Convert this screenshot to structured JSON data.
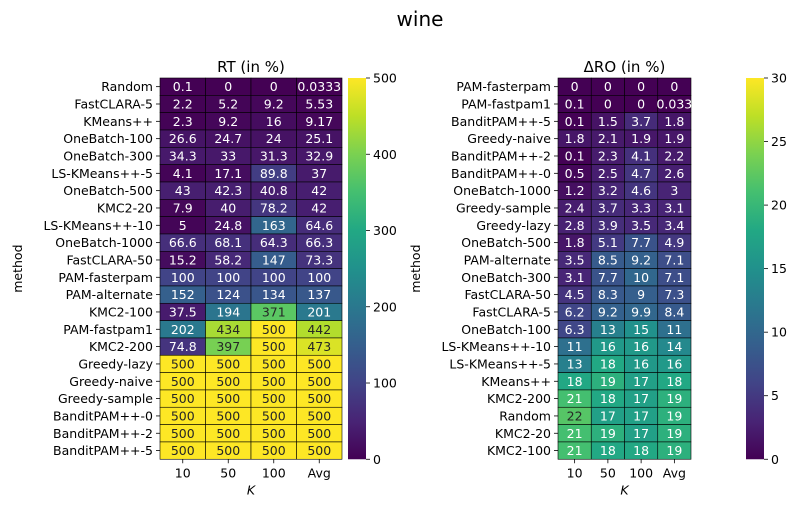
{
  "suptitle": "wine",
  "chart_data": [
    {
      "type": "heatmap",
      "title": "RT (in %)",
      "xlabel": "K",
      "ylabel": "method",
      "columns": [
        "10",
        "50",
        "100",
        "Avg"
      ],
      "colormap": "viridis",
      "vmin": 0,
      "vmax": 500,
      "colorbar_ticks": [
        0,
        100,
        200,
        300,
        400,
        500
      ],
      "rows": [
        {
          "label": "Random",
          "values": [
            0.1,
            0,
            0,
            0.0333
          ],
          "text": [
            "0.1",
            "0",
            "0",
            "0.0333"
          ]
        },
        {
          "label": "FastCLARA-5",
          "values": [
            2.2,
            5.2,
            9.2,
            5.53
          ],
          "text": [
            "2.2",
            "5.2",
            "9.2",
            "5.53"
          ]
        },
        {
          "label": "KMeans++",
          "values": [
            2.3,
            9.2,
            16,
            9.17
          ],
          "text": [
            "2.3",
            "9.2",
            "16",
            "9.17"
          ]
        },
        {
          "label": "OneBatch-100",
          "values": [
            26.6,
            24.7,
            24,
            25.1
          ],
          "text": [
            "26.6",
            "24.7",
            "24",
            "25.1"
          ]
        },
        {
          "label": "OneBatch-300",
          "values": [
            34.3,
            33,
            31.3,
            32.9
          ],
          "text": [
            "34.3",
            "33",
            "31.3",
            "32.9"
          ]
        },
        {
          "label": "LS-KMeans++-5",
          "values": [
            4.1,
            17.1,
            89.8,
            37
          ],
          "text": [
            "4.1",
            "17.1",
            "89.8",
            "37"
          ]
        },
        {
          "label": "OneBatch-500",
          "values": [
            43,
            42.3,
            40.8,
            42
          ],
          "text": [
            "43",
            "42.3",
            "40.8",
            "42"
          ]
        },
        {
          "label": "KMC2-20",
          "values": [
            7.9,
            40,
            78.2,
            42
          ],
          "text": [
            "7.9",
            "40",
            "78.2",
            "42"
          ]
        },
        {
          "label": "LS-KMeans++-10",
          "values": [
            5,
            24.8,
            163,
            64.6
          ],
          "text": [
            "5",
            "24.8",
            "163",
            "64.6"
          ]
        },
        {
          "label": "OneBatch-1000",
          "values": [
            66.6,
            68.1,
            64.3,
            66.3
          ],
          "text": [
            "66.6",
            "68.1",
            "64.3",
            "66.3"
          ]
        },
        {
          "label": "FastCLARA-50",
          "values": [
            15.2,
            58.2,
            147,
            73.3
          ],
          "text": [
            "15.2",
            "58.2",
            "147",
            "73.3"
          ]
        },
        {
          "label": "PAM-fasterpam",
          "values": [
            100,
            100,
            100,
            100
          ],
          "text": [
            "100",
            "100",
            "100",
            "100"
          ]
        },
        {
          "label": "PAM-alternate",
          "values": [
            152,
            124,
            134,
            137
          ],
          "text": [
            "152",
            "124",
            "134",
            "137"
          ]
        },
        {
          "label": "KMC2-100",
          "values": [
            37.5,
            194,
            371,
            201
          ],
          "text": [
            "37.5",
            "194",
            "371",
            "201"
          ]
        },
        {
          "label": "PAM-fastpam1",
          "values": [
            202,
            434,
            500,
            442
          ],
          "text": [
            "202",
            "434",
            "500",
            "442"
          ]
        },
        {
          "label": "KMC2-200",
          "values": [
            74.8,
            397,
            500,
            473
          ],
          "text": [
            "74.8",
            "397",
            "500",
            "473"
          ]
        },
        {
          "label": "Greedy-lazy",
          "values": [
            500,
            500,
            500,
            500
          ],
          "text": [
            "500",
            "500",
            "500",
            "500"
          ]
        },
        {
          "label": "Greedy-naive",
          "values": [
            500,
            500,
            500,
            500
          ],
          "text": [
            "500",
            "500",
            "500",
            "500"
          ]
        },
        {
          "label": "Greedy-sample",
          "values": [
            500,
            500,
            500,
            500
          ],
          "text": [
            "500",
            "500",
            "500",
            "500"
          ]
        },
        {
          "label": "BanditPAM++-0",
          "values": [
            500,
            500,
            500,
            500
          ],
          "text": [
            "500",
            "500",
            "500",
            "500"
          ]
        },
        {
          "label": "BanditPAM++-2",
          "values": [
            500,
            500,
            500,
            500
          ],
          "text": [
            "500",
            "500",
            "500",
            "500"
          ]
        },
        {
          "label": "BanditPAM++-5",
          "values": [
            500,
            500,
            500,
            500
          ],
          "text": [
            "500",
            "500",
            "500",
            "500"
          ]
        }
      ]
    },
    {
      "type": "heatmap",
      "title": "ΔRO (in %)",
      "xlabel": "K",
      "ylabel": "method",
      "columns": [
        "10",
        "50",
        "100",
        "Avg"
      ],
      "colormap": "viridis",
      "vmin": 0,
      "vmax": 30,
      "colorbar_ticks": [
        0,
        5,
        10,
        15,
        20,
        25,
        30
      ],
      "rows": [
        {
          "label": "PAM-fasterpam",
          "values": [
            0,
            0,
            0,
            0
          ],
          "text": [
            "0",
            "0",
            "0",
            "0"
          ]
        },
        {
          "label": "PAM-fastpam1",
          "values": [
            0.1,
            0,
            0,
            0.033
          ],
          "text": [
            "0.1",
            "0",
            "0",
            "0.033"
          ]
        },
        {
          "label": "BanditPAM++-5",
          "values": [
            0.1,
            1.5,
            3.7,
            1.8
          ],
          "text": [
            "0.1",
            "1.5",
            "3.7",
            "1.8"
          ]
        },
        {
          "label": "Greedy-naive",
          "values": [
            1.8,
            2.1,
            1.9,
            1.9
          ],
          "text": [
            "1.8",
            "2.1",
            "1.9",
            "1.9"
          ]
        },
        {
          "label": "BanditPAM++-2",
          "values": [
            0.1,
            2.3,
            4.1,
            2.2
          ],
          "text": [
            "0.1",
            "2.3",
            "4.1",
            "2.2"
          ]
        },
        {
          "label": "BanditPAM++-0",
          "values": [
            0.5,
            2.5,
            4.7,
            2.6
          ],
          "text": [
            "0.5",
            "2.5",
            "4.7",
            "2.6"
          ]
        },
        {
          "label": "OneBatch-1000",
          "values": [
            1.2,
            3.2,
            4.6,
            3
          ],
          "text": [
            "1.2",
            "3.2",
            "4.6",
            "3"
          ]
        },
        {
          "label": "Greedy-sample",
          "values": [
            2.4,
            3.7,
            3.3,
            3.1
          ],
          "text": [
            "2.4",
            "3.7",
            "3.3",
            "3.1"
          ]
        },
        {
          "label": "Greedy-lazy",
          "values": [
            2.8,
            3.9,
            3.5,
            3.4
          ],
          "text": [
            "2.8",
            "3.9",
            "3.5",
            "3.4"
          ]
        },
        {
          "label": "OneBatch-500",
          "values": [
            1.8,
            5.1,
            7.7,
            4.9
          ],
          "text": [
            "1.8",
            "5.1",
            "7.7",
            "4.9"
          ]
        },
        {
          "label": "PAM-alternate",
          "values": [
            3.5,
            8.5,
            9.2,
            7.1
          ],
          "text": [
            "3.5",
            "8.5",
            "9.2",
            "7.1"
          ]
        },
        {
          "label": "OneBatch-300",
          "values": [
            3.1,
            7.7,
            10,
            7.1
          ],
          "text": [
            "3.1",
            "7.7",
            "10",
            "7.1"
          ]
        },
        {
          "label": "FastCLARA-50",
          "values": [
            4.5,
            8.3,
            9,
            7.3
          ],
          "text": [
            "4.5",
            "8.3",
            "9",
            "7.3"
          ]
        },
        {
          "label": "FastCLARA-5",
          "values": [
            6.2,
            9.2,
            9.9,
            8.4
          ],
          "text": [
            "6.2",
            "9.2",
            "9.9",
            "8.4"
          ]
        },
        {
          "label": "OneBatch-100",
          "values": [
            6.3,
            13,
            15,
            11
          ],
          "text": [
            "6.3",
            "13",
            "15",
            "11"
          ]
        },
        {
          "label": "LS-KMeans++-10",
          "values": [
            11,
            16,
            16,
            14
          ],
          "text": [
            "11",
            "16",
            "16",
            "14"
          ]
        },
        {
          "label": "LS-KMeans++-5",
          "values": [
            13,
            18,
            16,
            16
          ],
          "text": [
            "13",
            "18",
            "16",
            "16"
          ]
        },
        {
          "label": "KMeans++",
          "values": [
            18,
            19,
            17,
            18
          ],
          "text": [
            "18",
            "19",
            "17",
            "18"
          ]
        },
        {
          "label": "KMC2-200",
          "values": [
            21,
            18,
            17,
            19
          ],
          "text": [
            "21",
            "18",
            "17",
            "19"
          ]
        },
        {
          "label": "Random",
          "values": [
            22,
            17,
            17,
            19
          ],
          "text": [
            "22",
            "17",
            "17",
            "19"
          ]
        },
        {
          "label": "KMC2-20",
          "values": [
            21,
            19,
            17,
            19
          ],
          "text": [
            "21",
            "19",
            "17",
            "19"
          ]
        },
        {
          "label": "KMC2-100",
          "values": [
            21,
            18,
            18,
            19
          ],
          "text": [
            "21",
            "18",
            "18",
            "19"
          ]
        }
      ]
    }
  ]
}
